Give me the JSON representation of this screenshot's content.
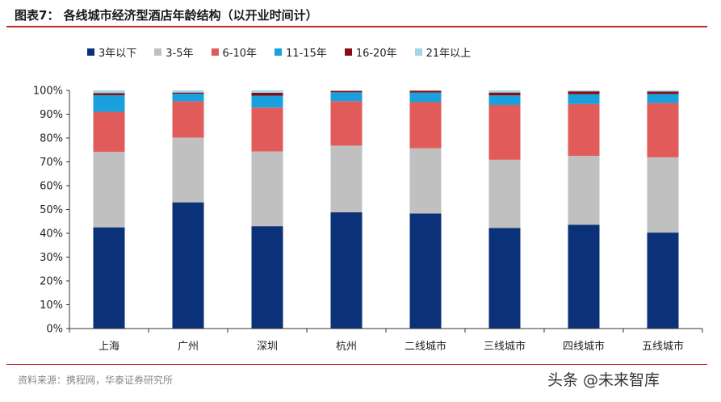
{
  "title": "图表7：  各线城市经济型酒店年龄结构（以开业时间计）",
  "source": "资料来源：携程网，华泰证券研究所",
  "watermark": "头条 @未来智库",
  "chart_data": {
    "type": "bar",
    "stacked": true,
    "categories": [
      "上海",
      "广州",
      "深圳",
      "杭州",
      "二线城市",
      "三线城市",
      "四线城市",
      "五线城市"
    ],
    "ylim": [
      0,
      100
    ],
    "yticks": [
      "0%",
      "10%",
      "20%",
      "30%",
      "40%",
      "50%",
      "60%",
      "70%",
      "80%",
      "90%",
      "100%"
    ],
    "legend_position": "top",
    "grid": false,
    "series": [
      {
        "name": "3年以下",
        "color": "#0b3278",
        "values": [
          42.5,
          53.0,
          43.0,
          48.8,
          48.3,
          42.2,
          43.6,
          40.3
        ]
      },
      {
        "name": "3-5年",
        "color": "#c0c0c0",
        "values": [
          31.7,
          27.2,
          31.4,
          28.0,
          27.4,
          28.7,
          28.9,
          31.6
        ]
      },
      {
        "name": "6-10年",
        "color": "#e15b5b",
        "values": [
          16.8,
          15.2,
          18.4,
          18.7,
          19.4,
          23.0,
          21.8,
          22.8
        ]
      },
      {
        "name": "11-15年",
        "color": "#1aa0dc",
        "values": [
          7.0,
          3.2,
          5.0,
          3.7,
          4.0,
          4.0,
          4.1,
          3.8
        ]
      },
      {
        "name": "16-20年",
        "color": "#8b0c14",
        "values": [
          0.9,
          0.5,
          1.2,
          0.6,
          0.8,
          1.2,
          1.2,
          1.0
        ]
      },
      {
        "name": "21年以上",
        "color": "#9fd6e8",
        "values": [
          1.1,
          0.9,
          1.0,
          0.2,
          0.1,
          0.9,
          0.4,
          0.5
        ]
      }
    ]
  }
}
